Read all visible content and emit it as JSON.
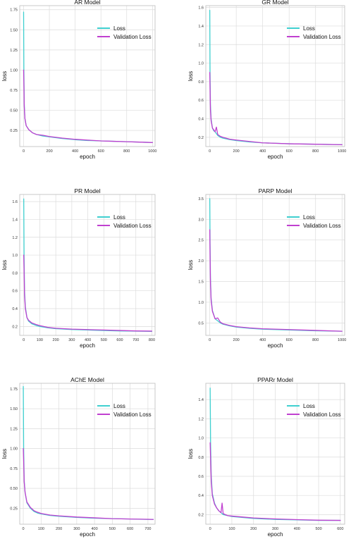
{
  "chart_data": [
    {
      "type": "line",
      "title": "AR Model",
      "xlabel": "epoch",
      "ylabel": "loss",
      "xlim": [
        -30,
        1020
      ],
      "ylim": [
        0.05,
        1.8
      ],
      "xticks": [
        0,
        200,
        400,
        600,
        800,
        1000
      ],
      "yticks": [
        0.25,
        0.5,
        0.75,
        1.0,
        1.25,
        1.5,
        1.75
      ],
      "ytick_decimals": 2,
      "grid": true,
      "legend": "top-right",
      "series": [
        {
          "name": "Loss",
          "color": "#40D0D0",
          "x": [
            0,
            2,
            5,
            10,
            20,
            40,
            70,
            100,
            150,
            200,
            300,
            400,
            500,
            600,
            700,
            800,
            900,
            1000
          ],
          "y": [
            1.72,
            1.0,
            0.58,
            0.4,
            0.31,
            0.26,
            0.22,
            0.2,
            0.18,
            0.17,
            0.15,
            0.135,
            0.125,
            0.12,
            0.115,
            0.11,
            0.105,
            0.1
          ]
        },
        {
          "name": "Validation Loss",
          "color": "#C040D0",
          "x": [
            0,
            2,
            5,
            10,
            20,
            40,
            70,
            100,
            150,
            200,
            300,
            400,
            500,
            600,
            700,
            800,
            900,
            1000
          ],
          "y": [
            1.0,
            0.85,
            0.55,
            0.4,
            0.31,
            0.26,
            0.22,
            0.2,
            0.19,
            0.175,
            0.155,
            0.14,
            0.13,
            0.12,
            0.115,
            0.11,
            0.105,
            0.1
          ]
        }
      ]
    },
    {
      "type": "line",
      "title": "GR Model",
      "xlabel": "epoch",
      "ylabel": "loss",
      "xlim": [
        -30,
        1020
      ],
      "ylim": [
        0.1,
        1.62
      ],
      "xticks": [
        0,
        200,
        400,
        600,
        800,
        1000
      ],
      "yticks": [
        0.2,
        0.4,
        0.6,
        0.8,
        1.0,
        1.2,
        1.4,
        1.6
      ],
      "ytick_decimals": 1,
      "grid": true,
      "legend": "top-right",
      "series": [
        {
          "name": "Loss",
          "color": "#40D0D0",
          "x": [
            0,
            2,
            5,
            10,
            20,
            30,
            40,
            50,
            60,
            80,
            100,
            150,
            200,
            300,
            400,
            600,
            800,
            1000
          ],
          "y": [
            1.57,
            0.9,
            0.55,
            0.4,
            0.3,
            0.27,
            0.26,
            0.24,
            0.22,
            0.2,
            0.19,
            0.175,
            0.165,
            0.15,
            0.14,
            0.13,
            0.125,
            0.12
          ]
        },
        {
          "name": "Validation Loss",
          "color": "#C040D0",
          "x": [
            0,
            2,
            5,
            10,
            20,
            30,
            40,
            50,
            60,
            80,
            100,
            150,
            200,
            300,
            400,
            600,
            800,
            1000
          ],
          "y": [
            0.9,
            0.75,
            0.5,
            0.38,
            0.3,
            0.28,
            0.26,
            0.31,
            0.23,
            0.21,
            0.2,
            0.18,
            0.17,
            0.155,
            0.14,
            0.13,
            0.125,
            0.12
          ]
        }
      ]
    },
    {
      "type": "line",
      "title": "PR Model",
      "xlabel": "epoch",
      "ylabel": "loss",
      "xlim": [
        -25,
        820
      ],
      "ylim": [
        0.1,
        1.68
      ],
      "xticks": [
        0,
        100,
        200,
        300,
        400,
        500,
        600,
        700,
        800
      ],
      "yticks": [
        0.2,
        0.4,
        0.6,
        0.8,
        1.0,
        1.2,
        1.4,
        1.6
      ],
      "ytick_decimals": 1,
      "grid": true,
      "legend": "top-right",
      "series": [
        {
          "name": "Loss",
          "color": "#40D0D0",
          "x": [
            0,
            2,
            5,
            10,
            20,
            30,
            50,
            80,
            100,
            150,
            200,
            300,
            400,
            500,
            600,
            700,
            800
          ],
          "y": [
            1.63,
            1.0,
            0.6,
            0.42,
            0.3,
            0.26,
            0.23,
            0.21,
            0.2,
            0.185,
            0.175,
            0.165,
            0.16,
            0.155,
            0.15,
            0.148,
            0.145
          ]
        },
        {
          "name": "Validation Loss",
          "color": "#C040D0",
          "x": [
            0,
            2,
            5,
            10,
            20,
            30,
            50,
            80,
            100,
            150,
            200,
            300,
            400,
            500,
            600,
            700,
            800
          ],
          "y": [
            1.0,
            0.85,
            0.55,
            0.4,
            0.3,
            0.27,
            0.24,
            0.22,
            0.21,
            0.19,
            0.18,
            0.17,
            0.165,
            0.16,
            0.155,
            0.15,
            0.148
          ]
        }
      ]
    },
    {
      "type": "line",
      "title": "PARP Model",
      "xlabel": "epoch",
      "ylabel": "loss",
      "xlim": [
        -30,
        1020
      ],
      "ylim": [
        0.2,
        3.6
      ],
      "xticks": [
        0,
        200,
        400,
        600,
        800,
        1000
      ],
      "yticks": [
        0.5,
        1.0,
        1.5,
        2.0,
        2.5,
        3.0,
        3.5
      ],
      "ytick_decimals": 1,
      "grid": true,
      "legend": "top-right",
      "series": [
        {
          "name": "Loss",
          "color": "#40D0D0",
          "x": [
            0,
            2,
            5,
            10,
            20,
            40,
            60,
            80,
            100,
            150,
            200,
            300,
            400,
            600,
            800,
            1000
          ],
          "y": [
            3.5,
            2.5,
            1.6,
            1.1,
            0.8,
            0.6,
            0.55,
            0.5,
            0.47,
            0.43,
            0.4,
            0.37,
            0.35,
            0.33,
            0.31,
            0.3
          ]
        },
        {
          "name": "Validation Loss",
          "color": "#C040D0",
          "x": [
            0,
            2,
            5,
            10,
            20,
            40,
            60,
            80,
            100,
            150,
            200,
            300,
            400,
            600,
            800,
            1000
          ],
          "y": [
            2.75,
            2.2,
            1.5,
            1.05,
            0.78,
            0.6,
            0.62,
            0.52,
            0.48,
            0.44,
            0.41,
            0.38,
            0.36,
            0.34,
            0.32,
            0.3
          ]
        }
      ]
    },
    {
      "type": "line",
      "title": "AChE Model",
      "xlabel": "epoch",
      "ylabel": "loss",
      "xlim": [
        -20,
        740
      ],
      "ylim": [
        0.05,
        1.82
      ],
      "xticks": [
        0,
        100,
        200,
        300,
        400,
        500,
        600,
        700
      ],
      "yticks": [
        0.25,
        0.5,
        0.75,
        1.0,
        1.25,
        1.5,
        1.75
      ],
      "ytick_decimals": 2,
      "grid": true,
      "legend": "top-right",
      "series": [
        {
          "name": "Loss",
          "color": "#40D0D0",
          "x": [
            0,
            2,
            5,
            10,
            20,
            40,
            60,
            80,
            100,
            150,
            200,
            300,
            400,
            500,
            600,
            700,
            730
          ],
          "y": [
            1.78,
            1.0,
            0.6,
            0.45,
            0.32,
            0.25,
            0.21,
            0.19,
            0.18,
            0.16,
            0.15,
            0.135,
            0.125,
            0.12,
            0.115,
            0.11,
            0.11
          ]
        },
        {
          "name": "Validation Loss",
          "color": "#C040D0",
          "x": [
            0,
            2,
            5,
            10,
            20,
            40,
            60,
            80,
            100,
            150,
            200,
            300,
            400,
            500,
            600,
            700,
            730
          ],
          "y": [
            1.0,
            0.85,
            0.58,
            0.45,
            0.33,
            0.26,
            0.22,
            0.2,
            0.185,
            0.165,
            0.155,
            0.14,
            0.13,
            0.12,
            0.115,
            0.112,
            0.11
          ]
        }
      ]
    },
    {
      "type": "line",
      "title": "PPARr Model",
      "xlabel": "epoch",
      "ylabel": "loss",
      "xlim": [
        -20,
        620
      ],
      "ylim": [
        0.1,
        1.57
      ],
      "xticks": [
        0,
        100,
        200,
        300,
        400,
        500,
        600
      ],
      "yticks": [
        0.2,
        0.4,
        0.6,
        0.8,
        1.0,
        1.2,
        1.4
      ],
      "ytick_decimals": 1,
      "grid": true,
      "legend": "top-right",
      "series": [
        {
          "name": "Loss",
          "color": "#40D0D0",
          "x": [
            0,
            2,
            5,
            10,
            20,
            30,
            40,
            50,
            55,
            60,
            80,
            100,
            150,
            200,
            300,
            400,
            500,
            600
          ],
          "y": [
            1.52,
            0.95,
            0.6,
            0.42,
            0.32,
            0.27,
            0.24,
            0.22,
            0.21,
            0.2,
            0.19,
            0.18,
            0.17,
            0.16,
            0.15,
            0.145,
            0.14,
            0.14
          ]
        },
        {
          "name": "Validation Loss",
          "color": "#C040D0",
          "x": [
            0,
            2,
            5,
            10,
            20,
            30,
            40,
            50,
            55,
            60,
            80,
            100,
            150,
            200,
            300,
            400,
            500,
            600
          ],
          "y": [
            0.95,
            0.8,
            0.55,
            0.4,
            0.31,
            0.27,
            0.24,
            0.22,
            0.32,
            0.21,
            0.19,
            0.185,
            0.175,
            0.165,
            0.155,
            0.148,
            0.142,
            0.14
          ]
        }
      ]
    }
  ]
}
